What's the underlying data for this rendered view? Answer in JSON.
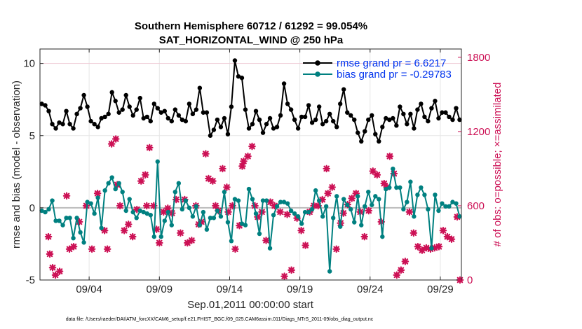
{
  "chart_data": {
    "type": "line",
    "title": "Southern Hemisphere 60712 / 61292 = 99.054%",
    "subtitle": "SAT_HORIZONTAL_WIND @ 250 hPa",
    "xlabel": "Sep.01,2011 00:00:00 start",
    "ylabel_left": "rmse and bias (model - observation)",
    "ylabel_right": "# of obs: o=possible; ×=assimilated",
    "xlim": [
      0.5,
      30.5
    ],
    "ylim_left": [
      -5,
      11
    ],
    "ylim_right": [
      0,
      1867
    ],
    "x_ticks": [
      4,
      9,
      14,
      19,
      24,
      29
    ],
    "x_tick_labels": [
      "09/04",
      "09/09",
      "09/14",
      "09/19",
      "09/24",
      "09/29"
    ],
    "y_ticks_left": [
      -5,
      0,
      5,
      10
    ],
    "y_ticks_right": [
      0,
      600,
      1200,
      1800
    ],
    "grid": true,
    "legend_position": "top-right",
    "colors": {
      "rmse": "#000000",
      "bias": "#008080",
      "obs": "#cc1155",
      "zero_line": "#bbbbbb"
    },
    "series": [
      {
        "name": "rmse grand pr = 6.6217",
        "axis": "left",
        "x": [
          0.625,
          0.875,
          1.125,
          1.375,
          1.625,
          1.875,
          2.125,
          2.375,
          2.625,
          2.875,
          3.125,
          3.375,
          3.625,
          3.875,
          4.125,
          4.375,
          4.625,
          4.875,
          5.125,
          5.375,
          5.625,
          5.875,
          6.125,
          6.375,
          6.625,
          6.875,
          7.125,
          7.375,
          7.625,
          7.875,
          8.125,
          8.375,
          8.625,
          8.875,
          9.125,
          9.375,
          9.625,
          9.875,
          10.125,
          10.375,
          10.625,
          10.875,
          11.125,
          11.375,
          11.625,
          11.875,
          12.125,
          12.375,
          12.625,
          12.875,
          13.125,
          13.375,
          13.625,
          13.875,
          14.125,
          14.375,
          14.625,
          14.875,
          15.125,
          15.375,
          15.625,
          15.875,
          16.125,
          16.375,
          16.625,
          16.875,
          17.125,
          17.375,
          17.625,
          17.875,
          18.125,
          18.375,
          18.625,
          18.875,
          19.125,
          19.375,
          19.625,
          19.875,
          20.125,
          20.375,
          20.625,
          20.875,
          21.125,
          21.375,
          21.625,
          21.875,
          22.125,
          22.375,
          22.625,
          22.875,
          23.125,
          23.375,
          23.625,
          23.875,
          24.125,
          24.375,
          24.625,
          24.875,
          25.125,
          25.375,
          25.625,
          25.875,
          26.125,
          26.375,
          26.625,
          26.875,
          27.125,
          27.375,
          27.625,
          27.875,
          28.125,
          28.375,
          28.625,
          28.875,
          29.125,
          29.375,
          29.625,
          29.875,
          30.125,
          30.375
        ],
        "values": [
          7.2,
          7.1,
          6.7,
          5.8,
          5.5,
          5.9,
          5.8,
          6.7,
          5.8,
          5.5,
          6.5,
          6.9,
          7.8,
          7.0,
          6.0,
          5.8,
          5.6,
          6.2,
          6.3,
          6.5,
          8.0,
          7.4,
          6.6,
          6.8,
          7.8,
          7.0,
          6.4,
          6.8,
          7.6,
          6.2,
          6.3,
          6.0,
          7.2,
          6.9,
          6.6,
          6.7,
          6.2,
          6.0,
          6.8,
          6.4,
          6.1,
          6.0,
          7.2,
          6.5,
          6.8,
          8.3,
          6.6,
          6.6,
          5.0,
          5.4,
          6.1,
          5.6,
          6.2,
          5.1,
          7.0,
          10.2,
          9.1,
          9.0,
          6.8,
          5.5,
          5.8,
          6.7,
          6.1,
          5.2,
          5.8,
          6.2,
          5.5,
          5.6,
          6.4,
          8.6,
          7.2,
          6.8,
          6.1,
          5.5,
          6.3,
          6.3,
          7.1,
          5.9,
          6.1,
          7.0,
          5.8,
          6.0,
          6.5,
          6.0,
          5.6,
          7.2,
          8.2,
          6.6,
          6.4,
          6.1,
          5.2,
          4.6,
          5.3,
          6.1,
          6.4,
          5.1,
          4.6,
          5.6,
          6.2,
          6.1,
          6.2,
          5.7,
          7.0,
          6.5,
          5.8,
          6.5,
          5.5,
          6.8,
          7.2,
          6.3,
          6.0,
          6.9,
          7.4,
          6.2,
          6.6,
          6.6,
          6.3,
          6.1,
          6.9,
          6.1
        ],
        "marker": "filled-dot"
      },
      {
        "name": "bias grand pr = -0.29783",
        "axis": "left",
        "x": [
          0.625,
          0.875,
          1.125,
          1.375,
          1.625,
          1.875,
          2.125,
          2.375,
          2.625,
          2.875,
          3.125,
          3.375,
          3.625,
          3.875,
          4.125,
          4.375,
          4.625,
          4.875,
          5.125,
          5.375,
          5.625,
          5.875,
          6.125,
          6.375,
          6.625,
          6.875,
          7.125,
          7.375,
          7.625,
          7.875,
          8.125,
          8.375,
          8.625,
          8.875,
          9.125,
          9.375,
          9.625,
          9.875,
          10.125,
          10.375,
          10.625,
          10.875,
          11.125,
          11.375,
          11.625,
          11.875,
          12.125,
          12.375,
          12.625,
          12.875,
          13.125,
          13.375,
          13.625,
          13.875,
          14.125,
          14.375,
          14.625,
          14.875,
          15.125,
          15.375,
          15.625,
          15.875,
          16.125,
          16.375,
          16.625,
          16.875,
          17.125,
          17.375,
          17.625,
          17.875,
          18.125,
          18.375,
          18.625,
          18.875,
          19.125,
          19.375,
          19.625,
          19.875,
          20.125,
          20.375,
          20.625,
          20.875,
          21.125,
          21.375,
          21.625,
          21.875,
          22.125,
          22.375,
          22.625,
          22.875,
          23.125,
          23.375,
          23.625,
          23.875,
          24.125,
          24.375,
          24.625,
          24.875,
          25.125,
          25.375,
          25.625,
          25.875,
          26.125,
          26.375,
          26.625,
          26.875,
          27.125,
          27.375,
          27.625,
          27.875,
          28.125,
          28.375,
          28.625,
          28.875,
          29.125,
          29.375,
          29.625,
          29.875,
          30.125,
          30.375
        ],
        "values": [
          -0.2,
          -0.3,
          -0.1,
          0.5,
          -0.9,
          -0.9,
          -1.2,
          -0.7,
          -0.7,
          -2.1,
          -0.7,
          -1.7,
          -2.4,
          0.4,
          0.3,
          -0.4,
          0.7,
          -1.4,
          1.2,
          1.7,
          2.1,
          1.3,
          1.7,
          1.1,
          -0.2,
          0.6,
          -0.3,
          -0.7,
          -0.2,
          -0.3,
          -0.4,
          -0.5,
          -2.0,
          3.2,
          -2.0,
          -0.9,
          -0.3,
          -1.2,
          1.1,
          1.7,
          -0.1,
          0.5,
          0.0,
          -0.6,
          0.1,
          -1.2,
          -0.3,
          -1.5,
          -0.7,
          -0.7,
          -0.2,
          -0.6,
          1.1,
          -1.0,
          -2.3,
          0.6,
          0.5,
          -1.1,
          -1.2,
          1.3,
          0.6,
          -0.4,
          -1.8,
          0.5,
          0.5,
          -2.8,
          -0.5,
          0.1,
          0.4,
          0.4,
          0.3,
          -0.2,
          -0.4,
          -0.6,
          -1.1,
          -0.3,
          -0.3,
          -0.1,
          1.2,
          0.5,
          -0.6,
          0.1,
          -4.4,
          -0.7,
          0.8,
          -1.3,
          0.6,
          0.2,
          -0.1,
          -1.0,
          0.8,
          -1.2,
          0.1,
          1.1,
          0.2,
          0.8,
          0.6,
          -2.0,
          1.3,
          1.4,
          2.7,
          1.4,
          1.4,
          -0.1,
          0.4,
          1.8,
          -0.6,
          0.9,
          1.4,
          0.9,
          -0.1,
          -2.8,
          0.9,
          -0.2,
          0.3,
          0.1,
          0.1,
          0.4,
          0.3,
          -0.6
        ]
      }
    ],
    "obs_points": [
      {
        "x": 1.1,
        "v": 350
      },
      {
        "x": 1.2,
        "v": 210
      },
      {
        "x": 1.4,
        "v": 100
      },
      {
        "x": 1.6,
        "v": 40
      },
      {
        "x": 1.9,
        "v": 70
      },
      {
        "x": 2.4,
        "v": 680
      },
      {
        "x": 2.6,
        "v": 250
      },
      {
        "x": 2.9,
        "v": 270
      },
      {
        "x": 3.3,
        "v": 470
      },
      {
        "x": 3.8,
        "v": 600
      },
      {
        "x": 4.2,
        "v": 250
      },
      {
        "x": 4.6,
        "v": 700
      },
      {
        "x": 5.1,
        "v": 400
      },
      {
        "x": 5.3,
        "v": 250
      },
      {
        "x": 5.6,
        "v": 1100
      },
      {
        "x": 5.9,
        "v": 1140
      },
      {
        "x": 6.0,
        "v": 770
      },
      {
        "x": 6.2,
        "v": 600
      },
      {
        "x": 6.5,
        "v": 400
      },
      {
        "x": 6.8,
        "v": 450
      },
      {
        "x": 7.1,
        "v": 350
      },
      {
        "x": 7.4,
        "v": 570
      },
      {
        "x": 7.7,
        "v": 800
      },
      {
        "x": 8.0,
        "v": 850
      },
      {
        "x": 8.1,
        "v": 600
      },
      {
        "x": 8.3,
        "v": 1070
      },
      {
        "x": 8.6,
        "v": 600
      },
      {
        "x": 8.8,
        "v": 410
      },
      {
        "x": 9.0,
        "v": 300
      },
      {
        "x": 9.3,
        "v": 550
      },
      {
        "x": 9.6,
        "v": 580
      },
      {
        "x": 9.9,
        "v": 540
      },
      {
        "x": 10.2,
        "v": 650
      },
      {
        "x": 10.5,
        "v": 380
      },
      {
        "x": 10.8,
        "v": 650
      },
      {
        "x": 11.0,
        "v": 300
      },
      {
        "x": 11.3,
        "v": 320
      },
      {
        "x": 11.6,
        "v": 600
      },
      {
        "x": 11.8,
        "v": 450
      },
      {
        "x": 12.0,
        "v": 470
      },
      {
        "x": 12.3,
        "v": 1020
      },
      {
        "x": 12.5,
        "v": 820
      },
      {
        "x": 12.8,
        "v": 800
      },
      {
        "x": 13.0,
        "v": 600
      },
      {
        "x": 13.2,
        "v": 560
      },
      {
        "x": 13.5,
        "v": 900
      },
      {
        "x": 13.8,
        "v": 750
      },
      {
        "x": 13.9,
        "v": 550
      },
      {
        "x": 14.2,
        "v": 600
      },
      {
        "x": 14.4,
        "v": 250
      },
      {
        "x": 14.7,
        "v": 440
      },
      {
        "x": 14.9,
        "v": 920
      },
      {
        "x": 15.0,
        "v": 960
      },
      {
        "x": 15.3,
        "v": 1000
      },
      {
        "x": 15.6,
        "v": 1080
      },
      {
        "x": 15.8,
        "v": 600
      },
      {
        "x": 16.0,
        "v": 510
      },
      {
        "x": 16.3,
        "v": 550
      },
      {
        "x": 16.6,
        "v": 320
      },
      {
        "x": 16.9,
        "v": 630
      },
      {
        "x": 17.2,
        "v": 600
      },
      {
        "x": 17.6,
        "v": 550
      },
      {
        "x": 17.9,
        "v": 30
      },
      {
        "x": 18.1,
        "v": 530
      },
      {
        "x": 18.4,
        "v": 80
      },
      {
        "x": 18.8,
        "v": 500
      },
      {
        "x": 19.1,
        "v": 400
      },
      {
        "x": 19.4,
        "v": 280
      },
      {
        "x": 19.7,
        "v": 550
      },
      {
        "x": 20.0,
        "v": 600
      },
      {
        "x": 20.3,
        "v": 600
      },
      {
        "x": 20.6,
        "v": 650
      },
      {
        "x": 20.9,
        "v": 900
      },
      {
        "x": 21.0,
        "v": 700
      },
      {
        "x": 21.3,
        "v": 750
      },
      {
        "x": 21.6,
        "v": 250
      },
      {
        "x": 21.9,
        "v": 460
      },
      {
        "x": 22.1,
        "v": 540
      },
      {
        "x": 22.4,
        "v": 610
      },
      {
        "x": 22.7,
        "v": 660
      },
      {
        "x": 23.0,
        "v": 700
      },
      {
        "x": 23.3,
        "v": 550
      },
      {
        "x": 23.6,
        "v": 350
      },
      {
        "x": 23.9,
        "v": 560
      },
      {
        "x": 24.2,
        "v": 880
      },
      {
        "x": 24.5,
        "v": 850
      },
      {
        "x": 24.8,
        "v": 470
      },
      {
        "x": 25.0,
        "v": 780
      },
      {
        "x": 25.2,
        "v": 750
      },
      {
        "x": 25.4,
        "v": 1000
      },
      {
        "x": 25.7,
        "v": 860
      },
      {
        "x": 25.9,
        "v": 40
      },
      {
        "x": 26.2,
        "v": 80
      },
      {
        "x": 26.5,
        "v": 150
      },
      {
        "x": 26.8,
        "v": 550
      },
      {
        "x": 27.1,
        "v": 380
      },
      {
        "x": 27.4,
        "v": 270
      },
      {
        "x": 27.7,
        "v": 240
      },
      {
        "x": 28.0,
        "v": 260
      },
      {
        "x": 28.3,
        "v": 250
      },
      {
        "x": 28.6,
        "v": 260
      },
      {
        "x": 28.9,
        "v": 270
      },
      {
        "x": 29.2,
        "v": 400
      },
      {
        "x": 29.5,
        "v": 350
      },
      {
        "x": 29.8,
        "v": 330
      },
      {
        "x": 30.2,
        "v": 510
      },
      {
        "x": 30.4,
        "v": 0
      }
    ],
    "footnote": "data file: /Users/raeder/DAI/ATM_forcXX/CAM6_setup/f.e21.FHIST_BGC.f09_025.CAM6assim.011/Diags_NTrS_2011-09/obs_diag_output.nc"
  }
}
